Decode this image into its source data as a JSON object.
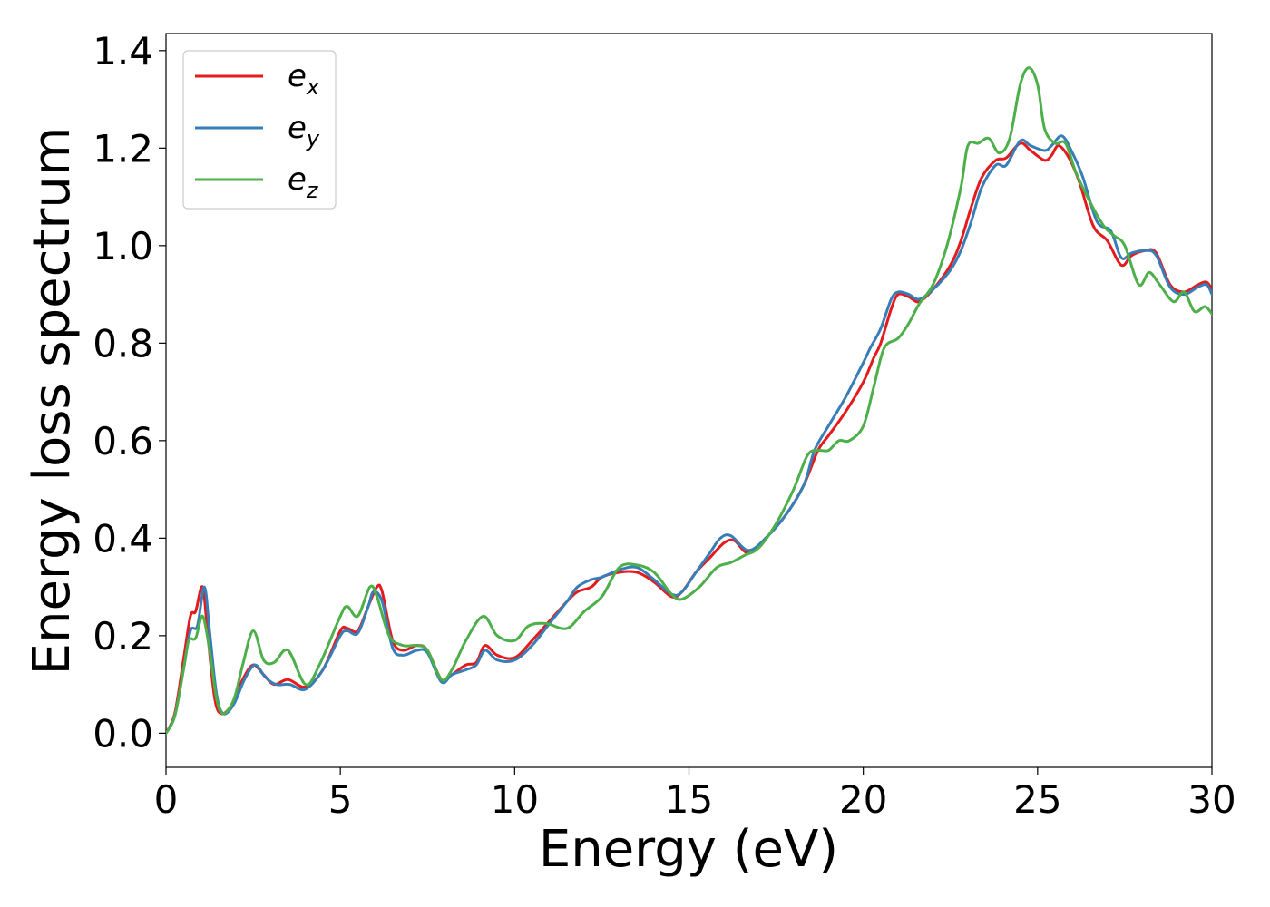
{
  "chart_data": {
    "type": "line",
    "xlabel": "Energy (eV)",
    "ylabel": "Energy loss spectrum",
    "xlim": [
      0,
      30
    ],
    "ylim": [
      -0.07,
      1.435
    ],
    "xticks": [
      0,
      5,
      10,
      15,
      20,
      25,
      30
    ],
    "yticks": [
      0.0,
      0.2,
      0.4,
      0.6,
      0.8,
      1.0,
      1.2,
      1.4
    ],
    "xtick_labels": [
      "0",
      "5",
      "10",
      "15",
      "20",
      "25",
      "30"
    ],
    "ytick_labels": [
      "0.0",
      "0.2",
      "0.4",
      "0.6",
      "0.8",
      "1.0",
      "1.2",
      "1.4"
    ],
    "grid": false,
    "legend_position": "top-left",
    "series": [
      {
        "name": "e_x",
        "label_base": "e",
        "label_sub": "x",
        "color": "#e41a1c",
        "points": [
          [
            0,
            0
          ],
          [
            0.25,
            0.04
          ],
          [
            0.5,
            0.15
          ],
          [
            0.7,
            0.24
          ],
          [
            0.85,
            0.25
          ],
          [
            1.05,
            0.3
          ],
          [
            1.2,
            0.2
          ],
          [
            1.4,
            0.07
          ],
          [
            1.6,
            0.04
          ],
          [
            1.9,
            0.06
          ],
          [
            2.2,
            0.11
          ],
          [
            2.5,
            0.14
          ],
          [
            2.8,
            0.12
          ],
          [
            3.1,
            0.1
          ],
          [
            3.5,
            0.11
          ],
          [
            4.0,
            0.095
          ],
          [
            4.5,
            0.13
          ],
          [
            5.0,
            0.21
          ],
          [
            5.2,
            0.215
          ],
          [
            5.5,
            0.21
          ],
          [
            5.8,
            0.26
          ],
          [
            6.05,
            0.3
          ],
          [
            6.2,
            0.29
          ],
          [
            6.5,
            0.19
          ],
          [
            6.8,
            0.17
          ],
          [
            7.2,
            0.18
          ],
          [
            7.5,
            0.17
          ],
          [
            7.9,
            0.11
          ],
          [
            8.2,
            0.12
          ],
          [
            8.6,
            0.14
          ],
          [
            8.9,
            0.145
          ],
          [
            9.15,
            0.18
          ],
          [
            9.5,
            0.16
          ],
          [
            10.0,
            0.155
          ],
          [
            10.5,
            0.19
          ],
          [
            11.0,
            0.23
          ],
          [
            11.5,
            0.27
          ],
          [
            11.8,
            0.29
          ],
          [
            12.2,
            0.3
          ],
          [
            12.5,
            0.32
          ],
          [
            13.0,
            0.33
          ],
          [
            13.5,
            0.33
          ],
          [
            14.0,
            0.31
          ],
          [
            14.5,
            0.28
          ],
          [
            14.8,
            0.29
          ],
          [
            15.2,
            0.33
          ],
          [
            15.6,
            0.36
          ],
          [
            16.0,
            0.39
          ],
          [
            16.3,
            0.395
          ],
          [
            16.7,
            0.37
          ],
          [
            17.2,
            0.4
          ],
          [
            17.8,
            0.45
          ],
          [
            18.3,
            0.51
          ],
          [
            18.7,
            0.58
          ],
          [
            19.0,
            0.61
          ],
          [
            19.5,
            0.66
          ],
          [
            20.0,
            0.72
          ],
          [
            20.3,
            0.77
          ],
          [
            20.5,
            0.8
          ],
          [
            20.8,
            0.87
          ],
          [
            21.0,
            0.9
          ],
          [
            21.3,
            0.895
          ],
          [
            21.6,
            0.885
          ],
          [
            22.0,
            0.91
          ],
          [
            22.5,
            0.96
          ],
          [
            22.8,
            1.01
          ],
          [
            23.1,
            1.08
          ],
          [
            23.4,
            1.14
          ],
          [
            23.8,
            1.175
          ],
          [
            24.1,
            1.18
          ],
          [
            24.5,
            1.21
          ],
          [
            24.8,
            1.195
          ],
          [
            25.2,
            1.175
          ],
          [
            25.4,
            1.185
          ],
          [
            25.6,
            1.205
          ],
          [
            25.9,
            1.18
          ],
          [
            26.2,
            1.13
          ],
          [
            26.6,
            1.04
          ],
          [
            27.0,
            1.01
          ],
          [
            27.4,
            0.96
          ],
          [
            27.7,
            0.98
          ],
          [
            28.1,
            0.99
          ],
          [
            28.4,
            0.985
          ],
          [
            28.8,
            0.92
          ],
          [
            29.2,
            0.905
          ],
          [
            29.6,
            0.92
          ],
          [
            29.85,
            0.925
          ],
          [
            30,
            0.91
          ]
        ]
      },
      {
        "name": "e_y",
        "label_base": "e",
        "label_sub": "y",
        "color": "#377eb8",
        "points": [
          [
            0,
            0
          ],
          [
            0.25,
            0.035
          ],
          [
            0.5,
            0.13
          ],
          [
            0.7,
            0.21
          ],
          [
            0.9,
            0.22
          ],
          [
            1.1,
            0.3
          ],
          [
            1.25,
            0.21
          ],
          [
            1.45,
            0.08
          ],
          [
            1.65,
            0.04
          ],
          [
            1.95,
            0.06
          ],
          [
            2.25,
            0.11
          ],
          [
            2.55,
            0.14
          ],
          [
            2.85,
            0.115
          ],
          [
            3.15,
            0.1
          ],
          [
            3.55,
            0.1
          ],
          [
            4.0,
            0.09
          ],
          [
            4.5,
            0.13
          ],
          [
            5.0,
            0.2
          ],
          [
            5.2,
            0.21
          ],
          [
            5.5,
            0.205
          ],
          [
            5.8,
            0.26
          ],
          [
            5.95,
            0.29
          ],
          [
            6.2,
            0.27
          ],
          [
            6.5,
            0.175
          ],
          [
            6.8,
            0.16
          ],
          [
            7.2,
            0.17
          ],
          [
            7.5,
            0.165
          ],
          [
            7.9,
            0.105
          ],
          [
            8.2,
            0.12
          ],
          [
            8.6,
            0.13
          ],
          [
            8.9,
            0.14
          ],
          [
            9.15,
            0.17
          ],
          [
            9.5,
            0.15
          ],
          [
            10.0,
            0.15
          ],
          [
            10.5,
            0.18
          ],
          [
            11.0,
            0.225
          ],
          [
            11.5,
            0.27
          ],
          [
            11.8,
            0.3
          ],
          [
            12.2,
            0.315
          ],
          [
            12.5,
            0.32
          ],
          [
            13.0,
            0.335
          ],
          [
            13.5,
            0.34
          ],
          [
            14.0,
            0.315
          ],
          [
            14.5,
            0.285
          ],
          [
            14.8,
            0.29
          ],
          [
            15.2,
            0.33
          ],
          [
            15.6,
            0.37
          ],
          [
            15.9,
            0.4
          ],
          [
            16.2,
            0.405
          ],
          [
            16.7,
            0.375
          ],
          [
            17.2,
            0.4
          ],
          [
            17.8,
            0.45
          ],
          [
            18.3,
            0.51
          ],
          [
            18.6,
            0.58
          ],
          [
            19.0,
            0.63
          ],
          [
            19.5,
            0.69
          ],
          [
            20.0,
            0.76
          ],
          [
            20.2,
            0.79
          ],
          [
            20.5,
            0.83
          ],
          [
            20.8,
            0.89
          ],
          [
            21.0,
            0.905
          ],
          [
            21.3,
            0.9
          ],
          [
            21.6,
            0.89
          ],
          [
            22.0,
            0.91
          ],
          [
            22.5,
            0.95
          ],
          [
            22.8,
            0.99
          ],
          [
            23.1,
            1.05
          ],
          [
            23.4,
            1.12
          ],
          [
            23.8,
            1.165
          ],
          [
            24.1,
            1.165
          ],
          [
            24.5,
            1.215
          ],
          [
            24.8,
            1.205
          ],
          [
            25.2,
            1.195
          ],
          [
            25.4,
            1.205
          ],
          [
            25.7,
            1.225
          ],
          [
            26.0,
            1.19
          ],
          [
            26.3,
            1.14
          ],
          [
            26.7,
            1.05
          ],
          [
            27.1,
            1.03
          ],
          [
            27.4,
            0.975
          ],
          [
            27.7,
            0.985
          ],
          [
            28.1,
            0.99
          ],
          [
            28.4,
            0.98
          ],
          [
            28.8,
            0.915
          ],
          [
            29.2,
            0.9
          ],
          [
            29.6,
            0.915
          ],
          [
            29.85,
            0.92
          ],
          [
            30,
            0.9
          ]
        ]
      },
      {
        "name": "e_z",
        "label_base": "e",
        "label_sub": "z",
        "color": "#4daf4a",
        "points": [
          [
            0,
            0
          ],
          [
            0.25,
            0.035
          ],
          [
            0.5,
            0.13
          ],
          [
            0.65,
            0.19
          ],
          [
            0.85,
            0.195
          ],
          [
            1.05,
            0.24
          ],
          [
            1.25,
            0.17
          ],
          [
            1.45,
            0.07
          ],
          [
            1.65,
            0.04
          ],
          [
            1.95,
            0.07
          ],
          [
            2.2,
            0.14
          ],
          [
            2.5,
            0.21
          ],
          [
            2.8,
            0.15
          ],
          [
            3.1,
            0.145
          ],
          [
            3.5,
            0.17
          ],
          [
            4.0,
            0.1
          ],
          [
            4.4,
            0.14
          ],
          [
            5.0,
            0.24
          ],
          [
            5.2,
            0.26
          ],
          [
            5.5,
            0.24
          ],
          [
            5.85,
            0.3
          ],
          [
            6.05,
            0.28
          ],
          [
            6.4,
            0.2
          ],
          [
            6.8,
            0.18
          ],
          [
            7.2,
            0.18
          ],
          [
            7.5,
            0.17
          ],
          [
            7.9,
            0.11
          ],
          [
            8.2,
            0.13
          ],
          [
            8.6,
            0.19
          ],
          [
            9.1,
            0.24
          ],
          [
            9.5,
            0.2
          ],
          [
            10.0,
            0.19
          ],
          [
            10.4,
            0.22
          ],
          [
            10.9,
            0.225
          ],
          [
            11.5,
            0.215
          ],
          [
            12.0,
            0.25
          ],
          [
            12.5,
            0.28
          ],
          [
            13.0,
            0.34
          ],
          [
            13.5,
            0.345
          ],
          [
            14.0,
            0.33
          ],
          [
            14.5,
            0.285
          ],
          [
            14.8,
            0.275
          ],
          [
            15.3,
            0.3
          ],
          [
            15.8,
            0.34
          ],
          [
            16.2,
            0.35
          ],
          [
            16.6,
            0.365
          ],
          [
            17.0,
            0.38
          ],
          [
            17.5,
            0.43
          ],
          [
            18.0,
            0.5
          ],
          [
            18.4,
            0.57
          ],
          [
            18.7,
            0.58
          ],
          [
            19.0,
            0.58
          ],
          [
            19.3,
            0.6
          ],
          [
            19.6,
            0.6
          ],
          [
            20.0,
            0.63
          ],
          [
            20.3,
            0.71
          ],
          [
            20.6,
            0.79
          ],
          [
            21.0,
            0.81
          ],
          [
            21.3,
            0.84
          ],
          [
            21.6,
            0.88
          ],
          [
            22.0,
            0.92
          ],
          [
            22.4,
            1.0
          ],
          [
            22.8,
            1.12
          ],
          [
            23.0,
            1.205
          ],
          [
            23.3,
            1.21
          ],
          [
            23.6,
            1.22
          ],
          [
            23.9,
            1.19
          ],
          [
            24.2,
            1.22
          ],
          [
            24.5,
            1.33
          ],
          [
            24.75,
            1.365
          ],
          [
            25.0,
            1.33
          ],
          [
            25.2,
            1.24
          ],
          [
            25.5,
            1.21
          ],
          [
            25.8,
            1.21
          ],
          [
            26.1,
            1.15
          ],
          [
            26.5,
            1.09
          ],
          [
            26.9,
            1.04
          ],
          [
            27.2,
            1.02
          ],
          [
            27.5,
            1.0
          ],
          [
            27.9,
            0.92
          ],
          [
            28.2,
            0.945
          ],
          [
            28.5,
            0.92
          ],
          [
            28.9,
            0.885
          ],
          [
            29.2,
            0.905
          ],
          [
            29.5,
            0.865
          ],
          [
            29.8,
            0.875
          ],
          [
            30,
            0.86
          ]
        ]
      }
    ]
  }
}
